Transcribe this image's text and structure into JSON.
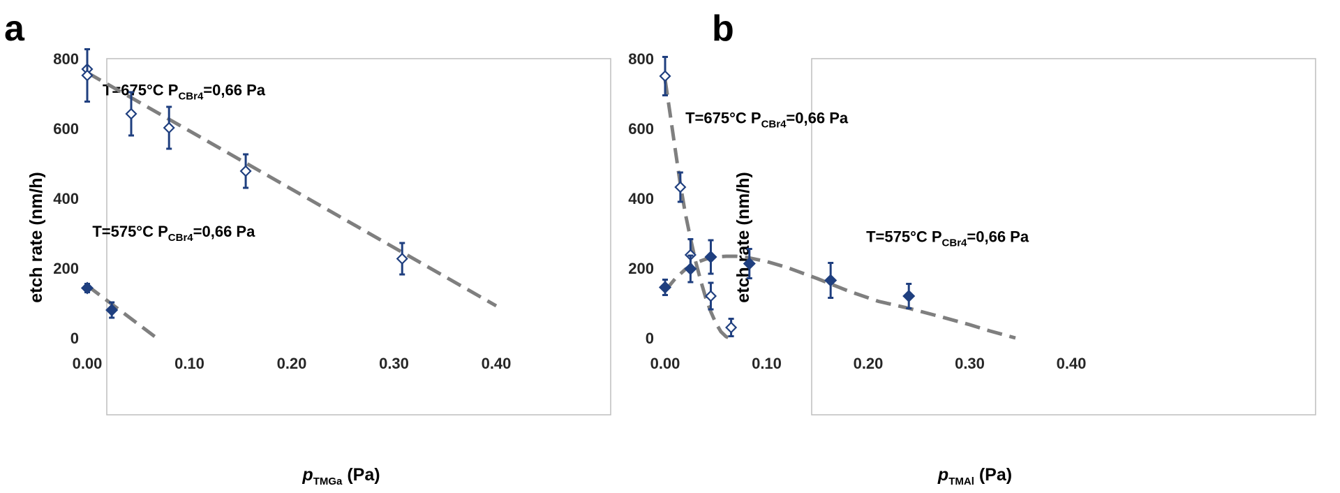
{
  "chart_data": [
    {
      "type": "scatter",
      "panel_label": "a",
      "xlabel_main": "p",
      "xlabel_sub": "TMGa",
      "xlabel_unit": " (Pa)",
      "ylabel": "etch rate (nm/h)",
      "xlim": [
        0,
        0.4
      ],
      "ylim": [
        0,
        800
      ],
      "x_ticks": [
        "0.00",
        "0.10",
        "0.20",
        "0.30",
        "0.40"
      ],
      "y_ticks": [
        "0",
        "200",
        "400",
        "600",
        "800"
      ],
      "grid": false,
      "annotations": [
        {
          "text_main": "T=675°C   P",
          "text_sub": "CBr4",
          "text_end": "=0,66 Pa",
          "x": 0.015,
          "y": 695
        },
        {
          "text_main": "T=575°C   P",
          "text_sub": "CBr4",
          "text_end": "=0,66 Pa",
          "x": 0.005,
          "y": 290
        }
      ],
      "series": [
        {
          "marker": "open-diamond",
          "points": [
            {
              "x": 0.0,
              "y": 770,
              "err": 0
            },
            {
              "x": 0.0,
              "y": 752,
              "err": 75
            },
            {
              "x": 0.043,
              "y": 642,
              "err": 62
            },
            {
              "x": 0.08,
              "y": 602,
              "err": 60
            },
            {
              "x": 0.155,
              "y": 478,
              "err": 48
            },
            {
              "x": 0.308,
              "y": 227,
              "err": 45
            }
          ],
          "fit": {
            "kind": "linear",
            "x0": 0.0,
            "x1": 0.4,
            "y0": 760,
            "slope": -1670
          }
        },
        {
          "marker": "filled-diamond",
          "points": [
            {
              "x": 0.0,
              "y": 143,
              "err": 12
            },
            {
              "x": 0.024,
              "y": 80,
              "err": 22
            }
          ],
          "fit": {
            "kind": "linear",
            "x0": 0.0,
            "x1": 0.068,
            "y0": 150,
            "slope": -2210
          }
        }
      ]
    },
    {
      "type": "scatter",
      "panel_label": "b",
      "xlabel_main": "p",
      "xlabel_sub": "TMAl",
      "xlabel_unit": " (Pa)",
      "ylabel": "etch rate (nm/h)",
      "xlim": [
        0,
        0.4
      ],
      "ylim": [
        0,
        800
      ],
      "x_ticks": [
        "0.00",
        "0.10",
        "0.20",
        "0.30",
        "0.40"
      ],
      "y_ticks": [
        "0",
        "200",
        "400",
        "600",
        "800"
      ],
      "grid": false,
      "annotations": [
        {
          "text_main": "T=675°C   P",
          "text_sub": "CBr4",
          "text_end": "=0,66 Pa",
          "x": 0.02,
          "y": 615
        },
        {
          "text_main": "T=575°C   P",
          "text_sub": "CBr4",
          "text_end": "=0,66 Pa",
          "x": 0.198,
          "y": 275
        }
      ],
      "series": [
        {
          "marker": "open-diamond",
          "points": [
            {
              "x": 0.0,
              "y": 750,
              "err": 55
            },
            {
              "x": 0.015,
              "y": 432,
              "err": 42
            },
            {
              "x": 0.025,
              "y": 238,
              "err": 45
            },
            {
              "x": 0.045,
              "y": 120,
              "err": 38
            },
            {
              "x": 0.065,
              "y": 30,
              "err": 25
            }
          ],
          "fit": {
            "kind": "curve",
            "xy": [
              [
                0.0,
                740
              ],
              [
                0.005,
                640
              ],
              [
                0.01,
                540
              ],
              [
                0.015,
                440
              ],
              [
                0.02,
                355
              ],
              [
                0.025,
                285
              ],
              [
                0.03,
                220
              ],
              [
                0.035,
                165
              ],
              [
                0.04,
                115
              ],
              [
                0.045,
                75
              ],
              [
                0.05,
                42
              ],
              [
                0.055,
                18
              ],
              [
                0.06,
                4
              ],
              [
                0.063,
                0
              ]
            ]
          }
        },
        {
          "marker": "filled-diamond",
          "points": [
            {
              "x": 0.0,
              "y": 145,
              "err": 22
            },
            {
              "x": 0.025,
              "y": 198,
              "err": 38
            },
            {
              "x": 0.045,
              "y": 232,
              "err": 48
            },
            {
              "x": 0.083,
              "y": 213,
              "err": 42
            },
            {
              "x": 0.163,
              "y": 165,
              "err": 50
            },
            {
              "x": 0.24,
              "y": 120,
              "err": 35
            }
          ],
          "fit": {
            "kind": "curve",
            "xy": [
              [
                0.0,
                135
              ],
              [
                0.01,
                170
              ],
              [
                0.02,
                197
              ],
              [
                0.03,
                215
              ],
              [
                0.04,
                226
              ],
              [
                0.05,
                232
              ],
              [
                0.06,
                234
              ],
              [
                0.07,
                234
              ],
              [
                0.08,
                231
              ],
              [
                0.1,
                219
              ],
              [
                0.12,
                202
              ],
              [
                0.15,
                170
              ],
              [
                0.18,
                135
              ],
              [
                0.21,
                105
              ],
              [
                0.24,
                85
              ],
              [
                0.27,
                62
              ],
              [
                0.3,
                38
              ],
              [
                0.32,
                20
              ],
              [
                0.345,
                0
              ]
            ]
          }
        }
      ]
    }
  ]
}
